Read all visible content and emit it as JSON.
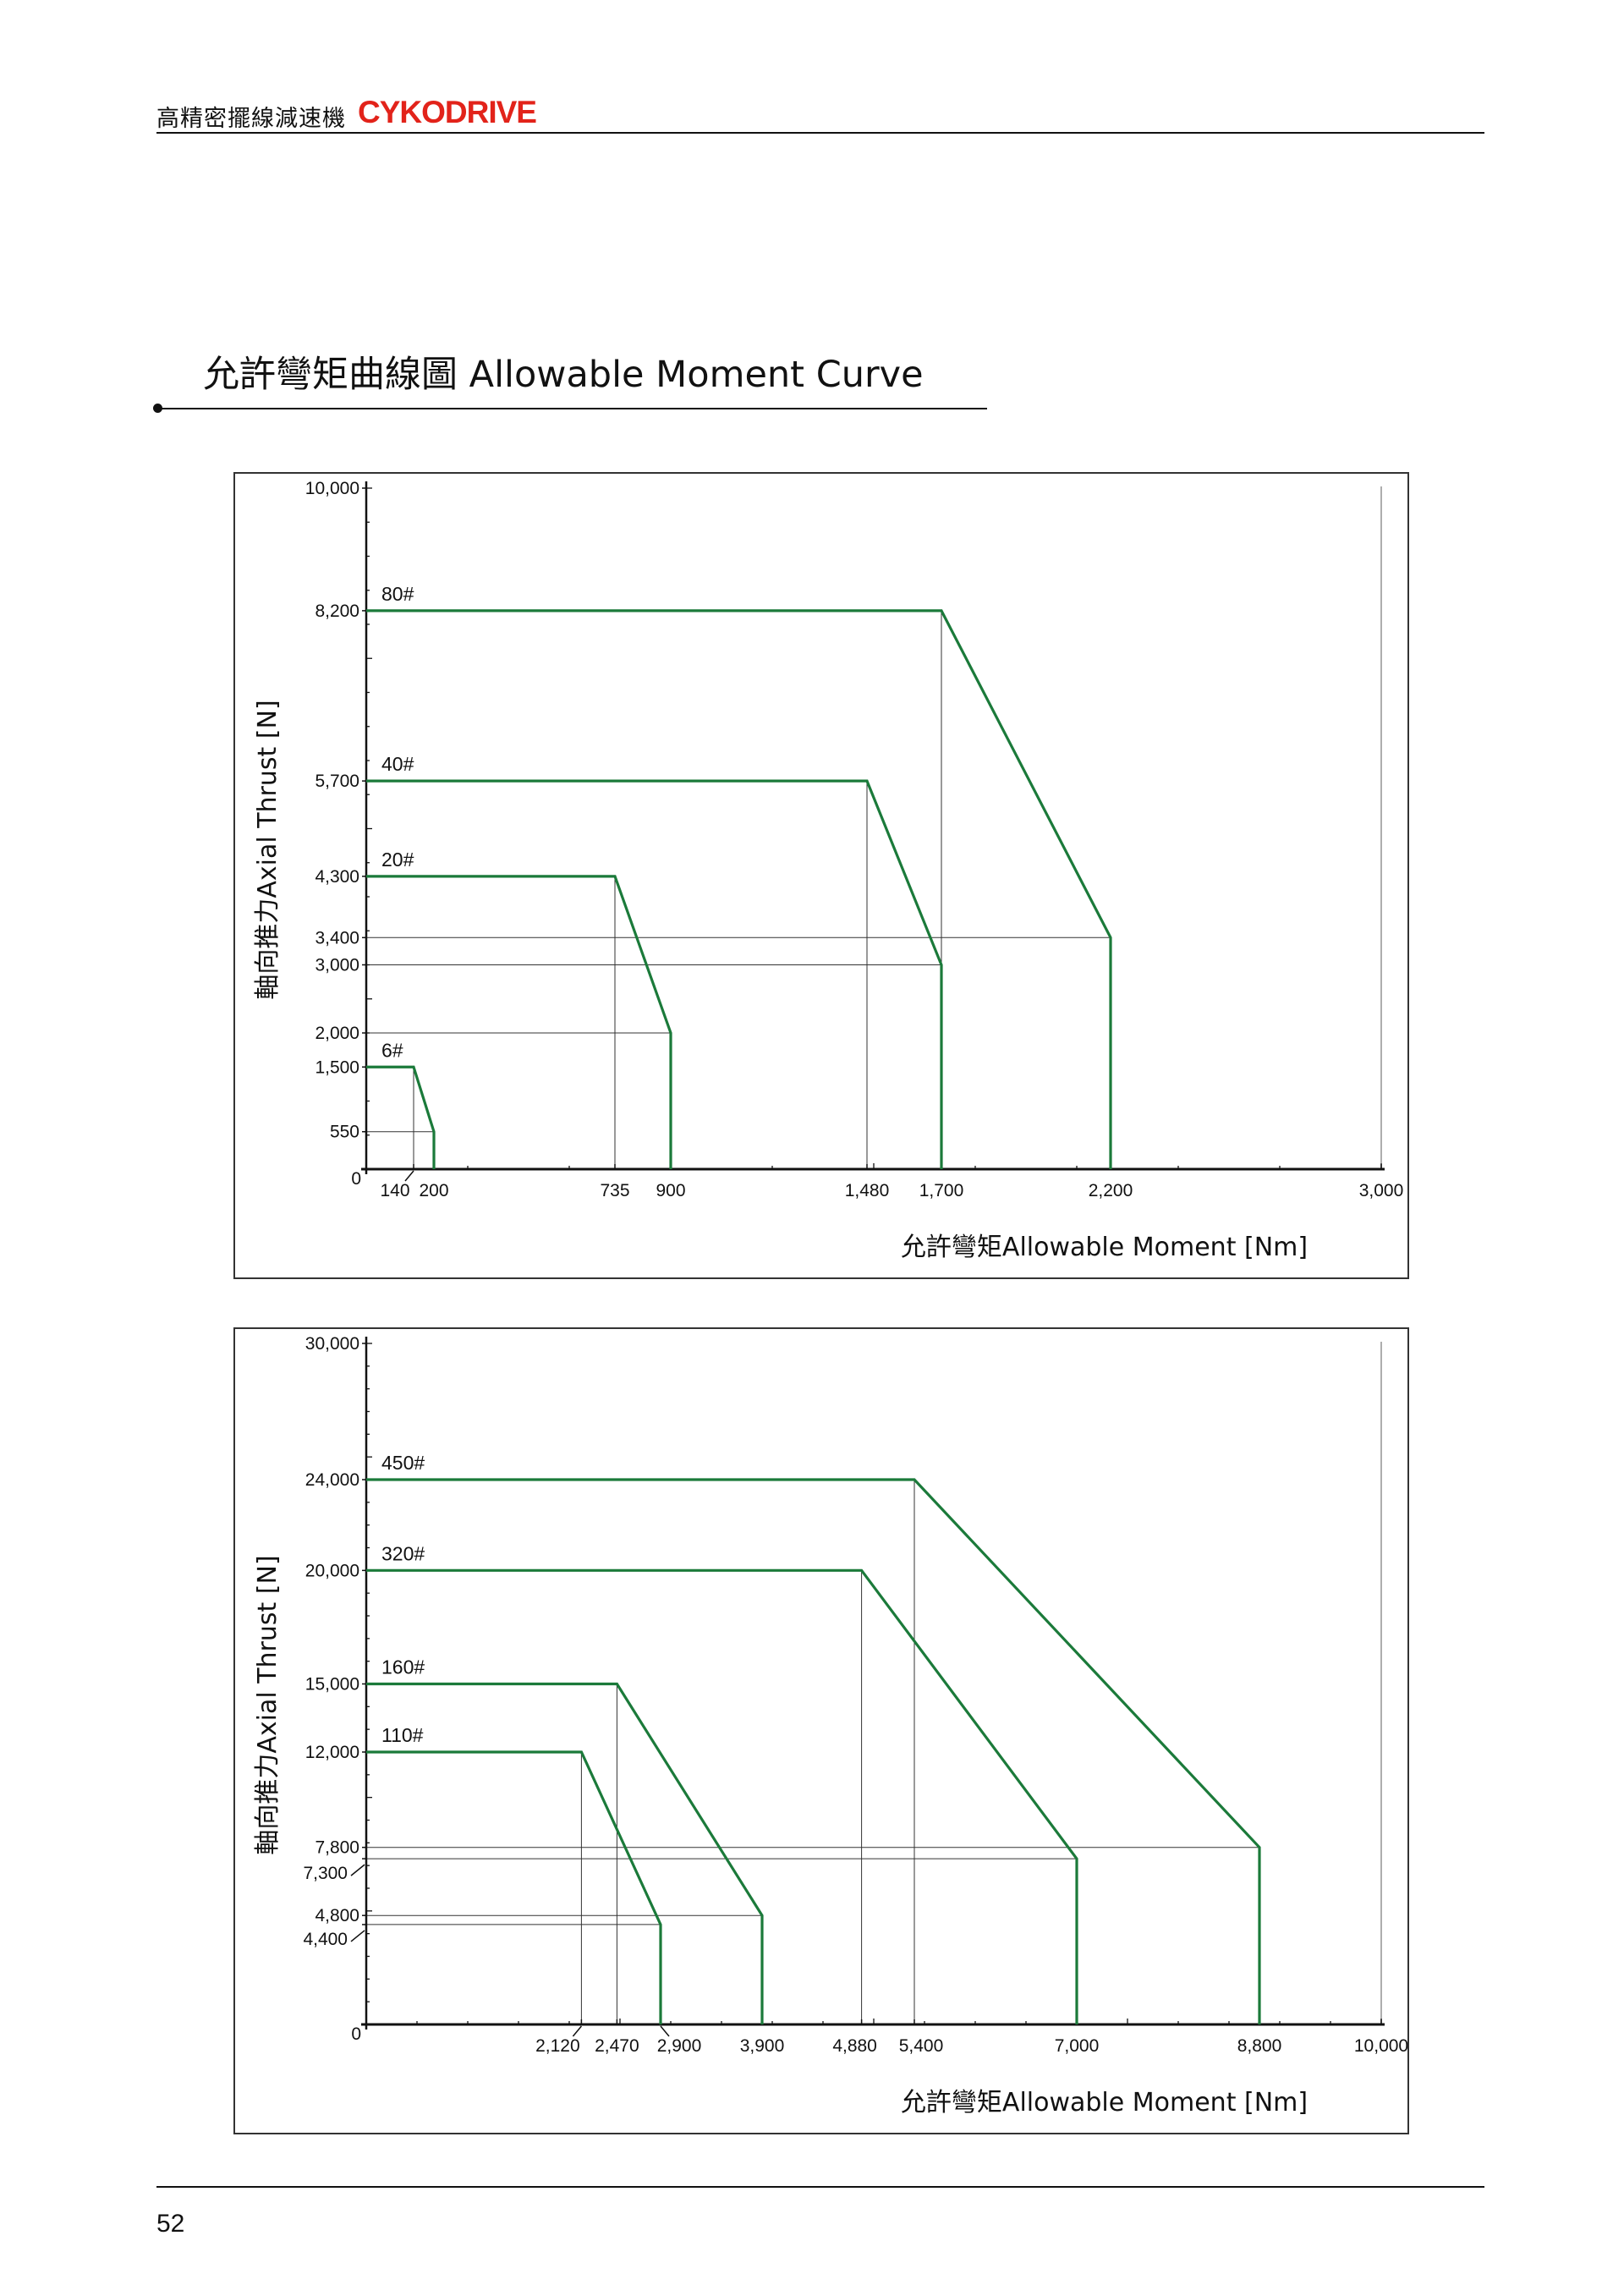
{
  "header": {
    "title_cn": "高精密擺線減速機",
    "brand": "CYKODRIVE"
  },
  "section_title": "允許彎矩曲線圖 Allowable Moment Curve",
  "page_number": "52",
  "colors": {
    "curve": "#1b7a3a",
    "axis": "#111111",
    "guide": "#333333",
    "brand": "#e2231a"
  },
  "chart_data": [
    {
      "type": "line",
      "xlabel": "允許彎矩Allowable Moment    [Nm]",
      "ylabel": "軸向推力Axial Thrust    [N]",
      "xlim": [
        0,
        3000
      ],
      "ylim": [
        0,
        10000
      ],
      "x_ticks": [
        "140",
        "200",
        "735",
        "900",
        "1,480",
        "1,700",
        "2,200",
        "3,000"
      ],
      "y_ticks": [
        "0",
        "550",
        "1,500",
        "2,000",
        "3,000",
        "3,400",
        "4,300",
        "5,700",
        "8,200",
        "10,000"
      ],
      "series": [
        {
          "name": "80#",
          "points": [
            [
              0,
              8200
            ],
            [
              1700,
              8200
            ],
            [
              2200,
              3400
            ],
            [
              2200,
              0
            ]
          ]
        },
        {
          "name": "40#",
          "points": [
            [
              0,
              5700
            ],
            [
              1480,
              5700
            ],
            [
              1700,
              3000
            ],
            [
              1700,
              0
            ]
          ]
        },
        {
          "name": "20#",
          "points": [
            [
              0,
              4300
            ],
            [
              735,
              4300
            ],
            [
              900,
              2000
            ],
            [
              900,
              0
            ]
          ]
        },
        {
          "name": "6#",
          "points": [
            [
              0,
              1500
            ],
            [
              140,
              1500
            ],
            [
              200,
              550
            ],
            [
              200,
              0
            ]
          ]
        }
      ]
    },
    {
      "type": "line",
      "xlabel": "允許彎矩Allowable Moment    [Nm]",
      "ylabel": "軸向推力Axial Thrust    [N]",
      "xlim": [
        0,
        10000
      ],
      "ylim": [
        0,
        30000
      ],
      "x_ticks": [
        "2,120",
        "2,470",
        "2,900",
        "3,900",
        "4,880",
        "5,400",
        "7,000",
        "8,800",
        "10,000"
      ],
      "y_ticks": [
        "0",
        "4,400",
        "4,800",
        "7,300",
        "7,800",
        "12,000",
        "15,000",
        "20,000",
        "24,000",
        "30,000"
      ],
      "series": [
        {
          "name": "450#",
          "points": [
            [
              0,
              24000
            ],
            [
              5400,
              24000
            ],
            [
              8800,
              7800
            ],
            [
              8800,
              0
            ]
          ]
        },
        {
          "name": "320#",
          "points": [
            [
              0,
              20000
            ],
            [
              4880,
              20000
            ],
            [
              7000,
              7300
            ],
            [
              7000,
              0
            ]
          ]
        },
        {
          "name": "160#",
          "points": [
            [
              0,
              15000
            ],
            [
              2470,
              15000
            ],
            [
              3900,
              4800
            ],
            [
              3900,
              0
            ]
          ]
        },
        {
          "name": "110#",
          "points": [
            [
              0,
              12000
            ],
            [
              2120,
              12000
            ],
            [
              2900,
              4400
            ],
            [
              2900,
              0
            ]
          ]
        }
      ]
    }
  ]
}
